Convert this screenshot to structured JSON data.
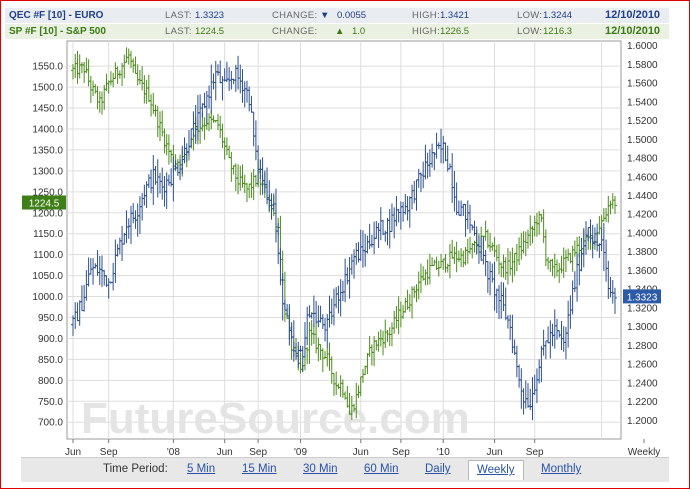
{
  "header": {
    "row1": {
      "symbol": "QEC #F [10] - EURO",
      "last_label": "LAST:",
      "last_value": "1.3323",
      "change_label": "CHANGE:",
      "change_value": "0.0055",
      "change_dir": "down",
      "high_label": "HIGH:",
      "high_value": "1.3421",
      "low_label": "LOW:",
      "low_value": "1.3244",
      "date": "12/10/2010"
    },
    "row2": {
      "symbol": "SP #F [10] - S&P 500",
      "last_label": "LAST:",
      "last_value": "1224.5",
      "change_label": "CHANGE:",
      "change_value": "1.0",
      "change_dir": "up",
      "high_label": "HIGH:",
      "high_value": "1226.5",
      "low_label": "LOW:",
      "low_value": "1216.3",
      "date": "12/10/2010"
    }
  },
  "colors": {
    "euro": "#2c4f8f",
    "sp500": "#4c8c1c",
    "grid": "#dddddd"
  },
  "watermark": "FutureSource.com",
  "time_period": {
    "label": "Time Period:",
    "options": [
      "5 Min",
      "15 Min",
      "30 Min",
      "60 Min",
      "Daily",
      "Weekly",
      "Monthly"
    ],
    "selected": "Weekly"
  },
  "chart_data": {
    "type": "line",
    "style": "ohlc-bars",
    "grid": true,
    "x_ticks": [
      "Jun",
      "Sep",
      "'08",
      "Jun",
      "Sep",
      "'09",
      "Jun",
      "Sep",
      "'10",
      "Jun",
      "Sep",
      "Weekly"
    ],
    "left_axis": {
      "series": "SP #F [10] - S&P 500",
      "range": [
        660,
        1610
      ],
      "ticks": [
        "700.0",
        "750.0",
        "800.0",
        "850.0",
        "900.0",
        "950.0",
        "1000.0",
        "1050.0",
        "1100.0",
        "1150.0",
        "1200.0",
        "1250.0",
        "1300.0",
        "1350.0",
        "1400.0",
        "1450.0",
        "1500.0",
        "1550.0"
      ],
      "last_marker": "1224.5"
    },
    "right_axis": {
      "series": "QEC #F [10] - EURO",
      "range": [
        1.18,
        1.605
      ],
      "ticks": [
        "1.2000",
        "1.2200",
        "1.2400",
        "1.2600",
        "1.2800",
        "1.3000",
        "1.3200",
        "1.3400",
        "1.3600",
        "1.3800",
        "1.4000",
        "1.4200",
        "1.4400",
        "1.4600",
        "1.4800",
        "1.5000",
        "1.5200",
        "1.5400",
        "1.5600",
        "1.5800",
        "1.6000"
      ],
      "last_marker": "1.3323"
    },
    "series": [
      {
        "name": "SP #F [10] - S&P 500",
        "axis": "left",
        "anchors": [
          [
            0,
            1540
          ],
          [
            5,
            1545
          ],
          [
            8,
            1500
          ],
          [
            12,
            1460
          ],
          [
            16,
            1510
          ],
          [
            21,
            1545
          ],
          [
            25,
            1575
          ],
          [
            28,
            1520
          ],
          [
            34,
            1480
          ],
          [
            38,
            1420
          ],
          [
            42,
            1360
          ],
          [
            45,
            1320
          ],
          [
            50,
            1330
          ],
          [
            54,
            1395
          ],
          [
            60,
            1420
          ],
          [
            65,
            1410
          ],
          [
            70,
            1320
          ],
          [
            74,
            1275
          ],
          [
            78,
            1255
          ],
          [
            83,
            1285
          ],
          [
            87,
            1240
          ],
          [
            92,
            1165
          ],
          [
            95,
            970
          ],
          [
            98,
            880
          ],
          [
            102,
            820
          ],
          [
            106,
            910
          ],
          [
            110,
            880
          ],
          [
            114,
            850
          ],
          [
            118,
            790
          ],
          [
            120,
            790
          ],
          [
            122,
            770
          ],
          [
            124,
            720
          ],
          [
            127,
            760
          ],
          [
            130,
            820
          ],
          [
            134,
            880
          ],
          [
            138,
            900
          ],
          [
            142,
            915
          ],
          [
            146,
            955
          ],
          [
            150,
            985
          ],
          [
            155,
            1035
          ],
          [
            160,
            1065
          ],
          [
            165,
            1075
          ],
          [
            170,
            1095
          ],
          [
            175,
            1095
          ],
          [
            180,
            1120
          ],
          [
            185,
            1140
          ],
          [
            188,
            1115
          ],
          [
            192,
            1075
          ],
          [
            195,
            1070
          ],
          [
            198,
            1090
          ],
          [
            202,
            1125
          ],
          [
            206,
            1160
          ],
          [
            208,
            1185
          ],
          [
            210,
            1180
          ],
          [
            212,
            1100
          ],
          [
            215,
            1060
          ],
          [
            218,
            1070
          ],
          [
            222,
            1090
          ],
          [
            226,
            1115
          ],
          [
            230,
            1130
          ],
          [
            234,
            1150
          ],
          [
            238,
            1190
          ],
          [
            241,
            1230
          ],
          [
            243,
            1224.5
          ]
        ]
      },
      {
        "name": "QEC #F [10] - EURO",
        "axis": "right",
        "anchors": [
          [
            0,
            1.302
          ],
          [
            4,
            1.325
          ],
          [
            8,
            1.362
          ],
          [
            12,
            1.36
          ],
          [
            16,
            1.348
          ],
          [
            20,
            1.38
          ],
          [
            24,
            1.41
          ],
          [
            28,
            1.42
          ],
          [
            32,
            1.445
          ],
          [
            36,
            1.46
          ],
          [
            40,
            1.45
          ],
          [
            44,
            1.46
          ],
          [
            48,
            1.475
          ],
          [
            52,
            1.5
          ],
          [
            56,
            1.52
          ],
          [
            60,
            1.545
          ],
          [
            64,
            1.57
          ],
          [
            68,
            1.555
          ],
          [
            72,
            1.57
          ],
          [
            76,
            1.56
          ],
          [
            79,
            1.545
          ],
          [
            82,
            1.48
          ],
          [
            86,
            1.45
          ],
          [
            90,
            1.43
          ],
          [
            93,
            1.345
          ],
          [
            97,
            1.29
          ],
          [
            100,
            1.265
          ],
          [
            103,
            1.275
          ],
          [
            106,
            1.32
          ],
          [
            110,
            1.305
          ],
          [
            114,
            1.3
          ],
          [
            118,
            1.33
          ],
          [
            122,
            1.35
          ],
          [
            126,
            1.375
          ],
          [
            130,
            1.38
          ],
          [
            134,
            1.395
          ],
          [
            138,
            1.405
          ],
          [
            142,
            1.41
          ],
          [
            146,
            1.425
          ],
          [
            150,
            1.43
          ],
          [
            154,
            1.45
          ],
          [
            158,
            1.47
          ],
          [
            162,
            1.485
          ],
          [
            166,
            1.49
          ],
          [
            169,
            1.47
          ],
          [
            172,
            1.43
          ],
          [
            176,
            1.42
          ],
          [
            180,
            1.4
          ],
          [
            184,
            1.37
          ],
          [
            188,
            1.345
          ],
          [
            192,
            1.325
          ],
          [
            196,
            1.3
          ],
          [
            199,
            1.255
          ],
          [
            202,
            1.225
          ],
          [
            205,
            1.22
          ],
          [
            208,
            1.25
          ],
          [
            212,
            1.285
          ],
          [
            216,
            1.295
          ],
          [
            220,
            1.28
          ],
          [
            224,
            1.335
          ],
          [
            228,
            1.38
          ],
          [
            231,
            1.41
          ],
          [
            234,
            1.385
          ],
          [
            237,
            1.39
          ],
          [
            240,
            1.34
          ],
          [
            243,
            1.3323
          ]
        ]
      }
    ],
    "x_tick_bars": [
      0,
      16,
      45,
      68,
      83,
      102,
      129,
      147,
      166,
      189,
      207,
      237
    ]
  }
}
